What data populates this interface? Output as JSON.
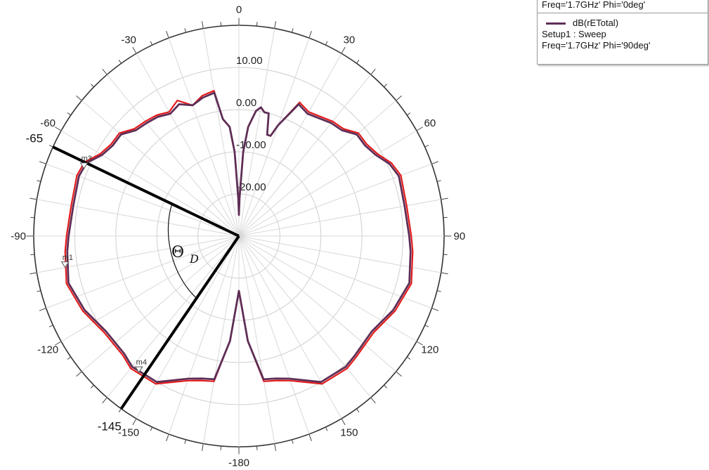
{
  "chart_data": {
    "type": "polar",
    "angle_ticks": [
      "0",
      "30",
      "60",
      "90",
      "120",
      "150",
      "-180",
      "-150",
      "-120",
      "-90",
      "-60",
      "-30"
    ],
    "radial_ticks": [
      "10.00",
      "0.00",
      "-10.00",
      "-20.00"
    ],
    "r_range_db": [
      -30,
      20
    ],
    "grid": true,
    "legend": {
      "placement": "top-right",
      "entries": [
        {
          "lines": [
            "Freq='1.7GHz' Phi='0deg'"
          ]
        },
        {
          "series_label": "dB(rETotal)",
          "lines": [
            "Setup1 : Sweep",
            "Freq='1.7GHz' Phi='90deg'"
          ]
        }
      ]
    },
    "series": [
      {
        "name": "Freq='1.7GHz' Phi='0deg'",
        "color": "#e21b1b",
        "points": [
          [
            -180,
            -17
          ],
          [
            -175,
            -5
          ],
          [
            -170,
            5
          ],
          [
            -165,
            5.5
          ],
          [
            -160,
            6.5
          ],
          [
            -150,
            10.5
          ],
          [
            -140,
            11
          ],
          [
            -135,
            10
          ],
          [
            -125,
            10
          ],
          [
            -115,
            12
          ],
          [
            -105,
            13.5
          ],
          [
            -95,
            12.5
          ],
          [
            -90,
            12
          ],
          [
            -80,
            11.5
          ],
          [
            -70,
            12
          ],
          [
            -65,
            11.5
          ],
          [
            -60,
            9
          ],
          [
            -55,
            8
          ],
          [
            -50,
            8
          ],
          [
            -45,
            6
          ],
          [
            -40,
            5.5
          ],
          [
            -35,
            5
          ],
          [
            -30,
            4
          ],
          [
            -25,
            5.5
          ],
          [
            -20,
            3
          ],
          [
            -15,
            4.5
          ],
          [
            -10,
            5
          ],
          [
            -8,
            -2
          ],
          [
            -5,
            -4
          ],
          [
            -3,
            -10
          ],
          [
            -1,
            -21
          ],
          [
            0,
            -25
          ],
          [
            1,
            -21
          ],
          [
            3,
            -10
          ],
          [
            5,
            -4
          ],
          [
            8,
            0
          ],
          [
            10,
            1
          ],
          [
            12,
            0
          ],
          [
            14,
            0
          ],
          [
            16,
            -5
          ],
          [
            18,
            -5
          ],
          [
            20,
            -2
          ],
          [
            25,
            5
          ],
          [
            30,
            4
          ],
          [
            40,
            5.5
          ],
          [
            45,
            6
          ],
          [
            50,
            8
          ],
          [
            55,
            8
          ],
          [
            60,
            9
          ],
          [
            65,
            11
          ],
          [
            70,
            12
          ],
          [
            80,
            11.5
          ],
          [
            90,
            12
          ],
          [
            95,
            12.5
          ],
          [
            105,
            13.5
          ],
          [
            115,
            12
          ],
          [
            125,
            10
          ],
          [
            135,
            10.5
          ],
          [
            140,
            11
          ],
          [
            150,
            10.5
          ],
          [
            160,
            6.5
          ],
          [
            165,
            5.5
          ],
          [
            170,
            5
          ],
          [
            175,
            -5
          ],
          [
            180,
            -17
          ]
        ]
      },
      {
        "name": "dB(rETotal) Setup1 : Sweep Freq='1.7GHz' Phi='90deg'",
        "color": "#5e2e56",
        "points": [
          [
            -180,
            -17
          ],
          [
            -175,
            -5
          ],
          [
            -170,
            4.5
          ],
          [
            -165,
            5
          ],
          [
            -160,
            6
          ],
          [
            -150,
            10
          ],
          [
            -140,
            10.5
          ],
          [
            -135,
            9.5
          ],
          [
            -125,
            9.5
          ],
          [
            -115,
            11.5
          ],
          [
            -105,
            13
          ],
          [
            -95,
            12
          ],
          [
            -90,
            11.5
          ],
          [
            -80,
            11
          ],
          [
            -70,
            11.5
          ],
          [
            -65,
            11
          ],
          [
            -60,
            8.5
          ],
          [
            -55,
            7.5
          ],
          [
            -50,
            7.5
          ],
          [
            -45,
            5.5
          ],
          [
            -40,
            5
          ],
          [
            -35,
            4.5
          ],
          [
            -30,
            3.5
          ],
          [
            -25,
            4.5
          ],
          [
            -20,
            3
          ],
          [
            -15,
            4
          ],
          [
            -10,
            4.5
          ],
          [
            -8,
            -2
          ],
          [
            -5,
            -4
          ],
          [
            -3,
            -10
          ],
          [
            -1,
            -21
          ],
          [
            0,
            -25
          ],
          [
            1,
            -21
          ],
          [
            3,
            -10
          ],
          [
            5,
            -4
          ],
          [
            8,
            0
          ],
          [
            10,
            1
          ],
          [
            12,
            0
          ],
          [
            14,
            0
          ],
          [
            16,
            -5
          ],
          [
            18,
            -5
          ],
          [
            20,
            -2
          ],
          [
            25,
            4.5
          ],
          [
            30,
            3.5
          ],
          [
            40,
            5
          ],
          [
            45,
            5.5
          ],
          [
            50,
            7.5
          ],
          [
            55,
            7.5
          ],
          [
            60,
            8.5
          ],
          [
            65,
            10.5
          ],
          [
            70,
            11.5
          ],
          [
            80,
            11
          ],
          [
            90,
            11.5
          ],
          [
            95,
            12
          ],
          [
            105,
            13
          ],
          [
            115,
            11.5
          ],
          [
            125,
            9.5
          ],
          [
            135,
            10
          ],
          [
            140,
            10.5
          ],
          [
            150,
            10
          ],
          [
            160,
            6
          ],
          [
            165,
            5
          ],
          [
            170,
            4.5
          ],
          [
            175,
            -5
          ],
          [
            180,
            -17
          ]
        ]
      }
    ],
    "markers": [
      {
        "name": "m1",
        "angle": -100
      },
      {
        "name": "m3",
        "angle": -67
      },
      {
        "name": "m4",
        "angle": -143
      }
    ],
    "annotations": {
      "beamwidth_lines": [
        {
          "label": "-65",
          "angle": -65
        },
        {
          "label": "-145",
          "angle": -145
        }
      ],
      "theta_label": "Θ",
      "theta_subscript": "D"
    }
  }
}
